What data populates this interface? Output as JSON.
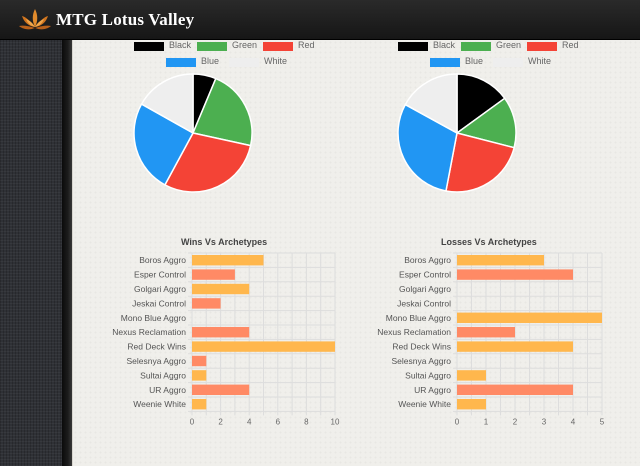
{
  "app": {
    "title": "MTG Lotus Valley",
    "logo_icon": "lotus-icon"
  },
  "colors": {
    "Black": "#000000",
    "Green": "#4caf50",
    "Red": "#f44336",
    "Blue": "#2196f3",
    "White": "#eeeeee",
    "bar_a": "#ffb74d",
    "bar_b": "#ff8a65"
  },
  "chart_data": [
    {
      "type": "pie",
      "legend": [
        "Black",
        "Green",
        "Red",
        "Blue",
        "White"
      ],
      "values": [
        6,
        21,
        28,
        24,
        16
      ]
    },
    {
      "type": "pie",
      "legend": [
        "Black",
        "Green",
        "Red",
        "Blue",
        "White"
      ],
      "values": [
        15,
        14,
        24,
        30,
        17
      ]
    },
    {
      "type": "bar",
      "orientation": "horizontal",
      "title": "Wins Vs Archetypes",
      "categories": [
        "Boros Aggro",
        "Esper Control",
        "Golgari Aggro",
        "Jeskai Control",
        "Mono Blue Aggro",
        "Nexus Reclamation",
        "Red Deck Wins",
        "Selesnya Aggro",
        "Sultai Aggro",
        "UR Aggro",
        "Weenie White"
      ],
      "values": [
        5,
        3,
        4,
        2,
        0,
        4,
        10,
        1,
        1,
        4,
        1
      ],
      "xlim": [
        0,
        10
      ],
      "xticks": [
        "0",
        "2",
        "4",
        "6",
        "8",
        "10"
      ],
      "grid": true
    },
    {
      "type": "bar",
      "orientation": "horizontal",
      "title": "Losses Vs Archetypes",
      "categories": [
        "Boros Aggro",
        "Esper Control",
        "Golgari Aggro",
        "Jeskai Control",
        "Mono Blue Aggro",
        "Nexus Reclamation",
        "Red Deck Wins",
        "Selesnya Aggro",
        "Sultai Aggro",
        "UR Aggro",
        "Weenie White"
      ],
      "values": [
        3,
        4,
        0,
        0,
        5,
        2,
        4,
        0,
        1,
        4,
        1
      ],
      "xlim": [
        0,
        5
      ],
      "xticks": [
        "0",
        "1",
        "2",
        "3",
        "4",
        "5"
      ],
      "grid": true
    }
  ]
}
